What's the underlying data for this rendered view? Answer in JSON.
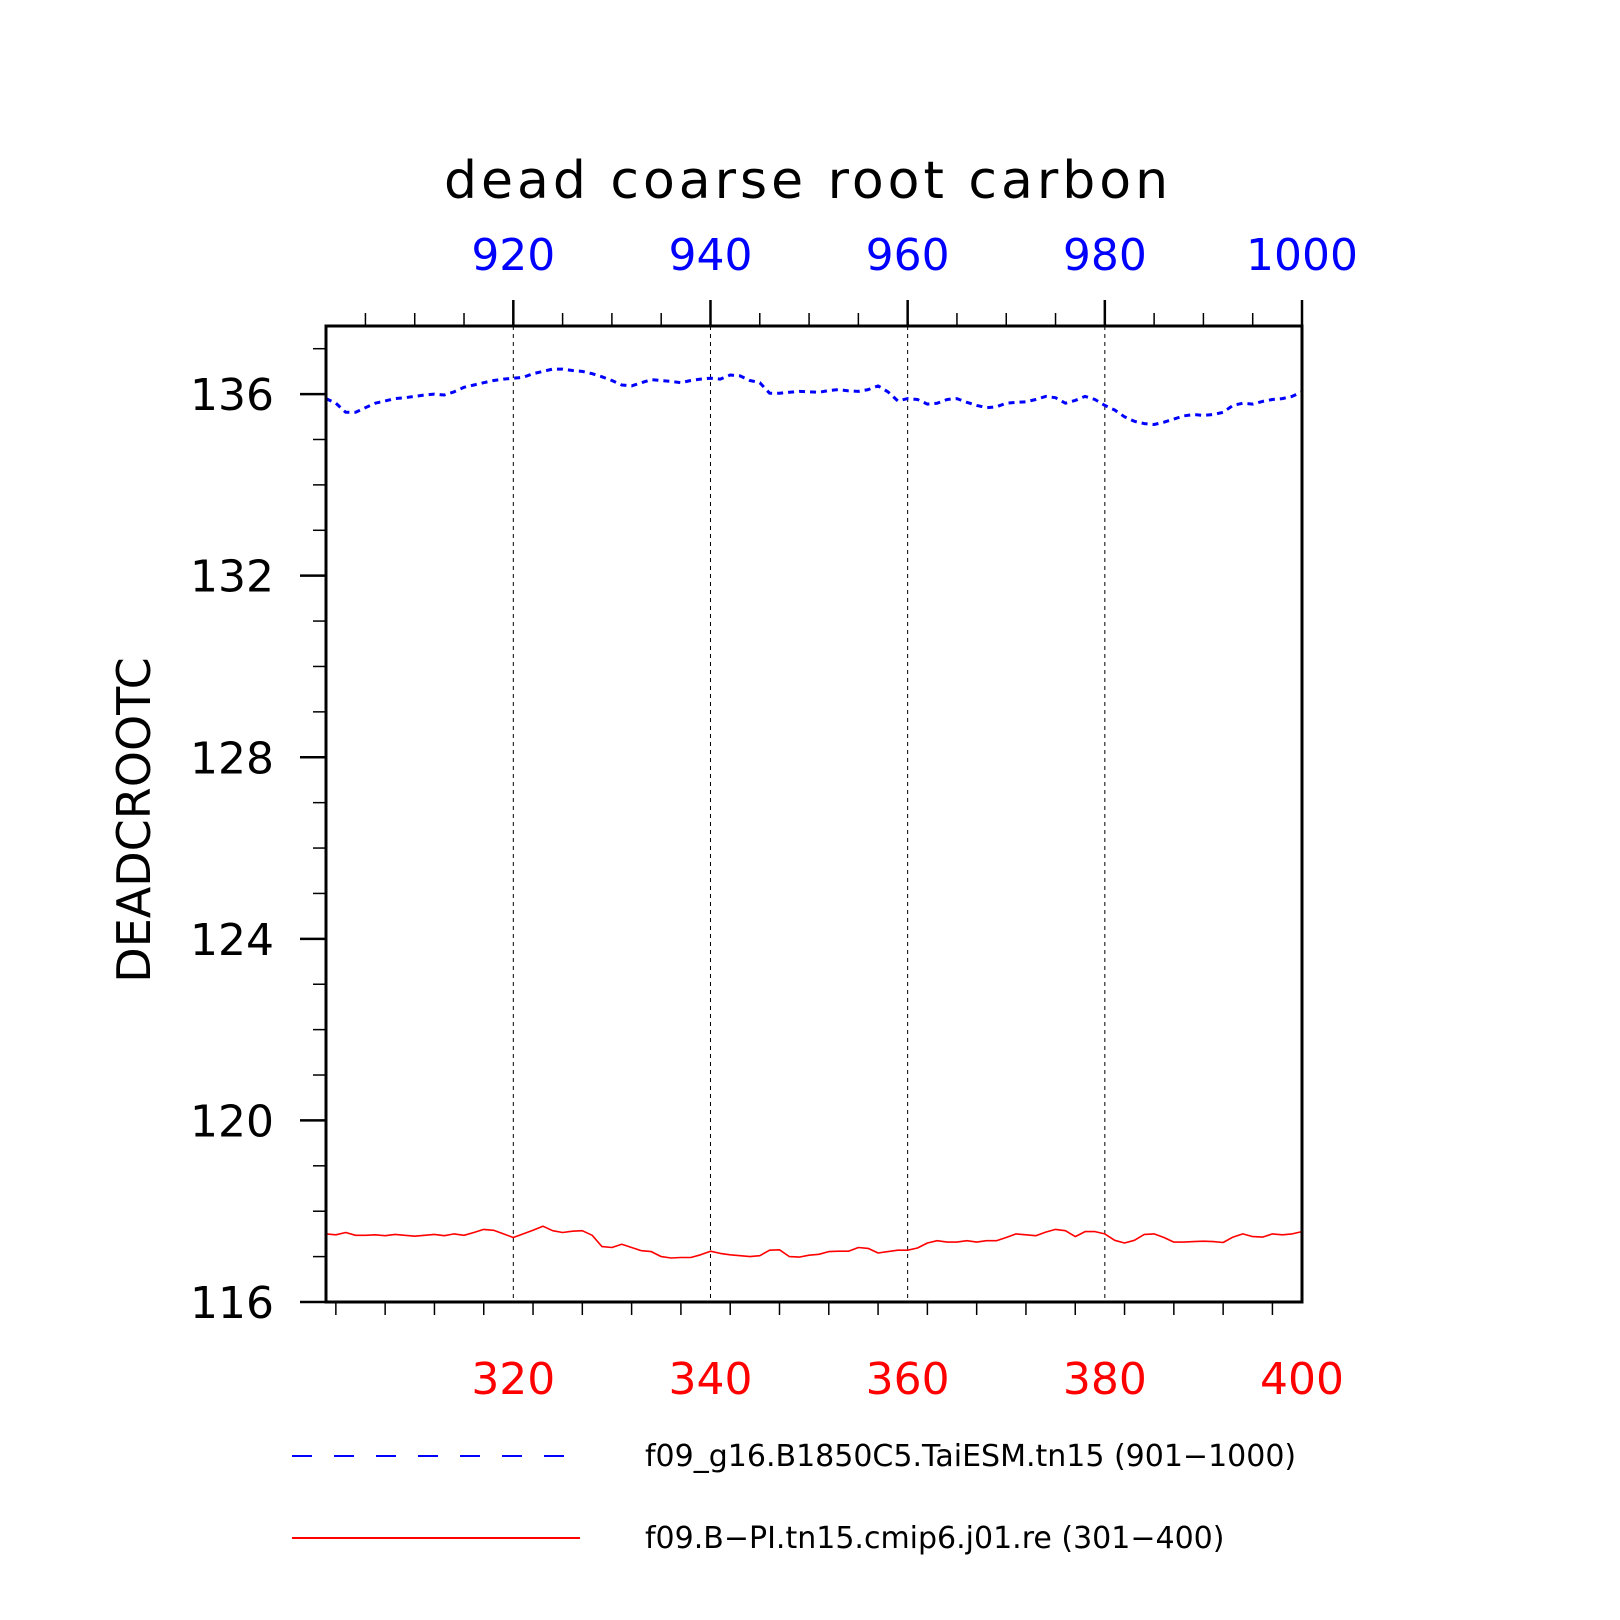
{
  "chart_data": {
    "type": "line",
    "title": "dead coarse root carbon",
    "ylabel": "DEADCROOTC",
    "ylim": [
      116,
      137.5
    ],
    "yticks": [
      116,
      120,
      124,
      128,
      132,
      136
    ],
    "ytick_labels": [
      "116",
      "120",
      "124",
      "128",
      "132",
      "136"
    ],
    "grid": "vertical dashed",
    "x_bottom": {
      "range": [
        301,
        400
      ],
      "ticks": [
        320,
        340,
        360,
        380,
        400
      ],
      "tick_labels": [
        "320",
        "340",
        "360",
        "380",
        "400"
      ],
      "color": "#ff0000"
    },
    "x_top": {
      "range": [
        901,
        1000
      ],
      "ticks": [
        920,
        940,
        960,
        980,
        1000
      ],
      "tick_labels": [
        "920",
        "940",
        "960",
        "980",
        "1000"
      ],
      "color": "#0000ff"
    },
    "series": [
      {
        "name": "f09_g16.B1850C5.TaiESM.tn15 (901−1000)",
        "axis": "top",
        "color": "#0000ff",
        "style": "dashed",
        "x_start": 901,
        "x_step": 1,
        "values": [
          135.9,
          135.8,
          135.6,
          135.6,
          135.7,
          135.8,
          135.85,
          135.9,
          135.92,
          135.95,
          135.98,
          136.0,
          135.98,
          136.05,
          136.15,
          136.2,
          136.25,
          136.3,
          136.33,
          136.35,
          136.37,
          136.45,
          136.5,
          136.55,
          136.55,
          136.52,
          136.5,
          136.45,
          136.38,
          136.3,
          136.2,
          136.18,
          136.25,
          136.32,
          136.3,
          136.28,
          136.25,
          136.3,
          136.33,
          136.35,
          136.33,
          136.42,
          136.4,
          136.3,
          136.25,
          136.02,
          136.02,
          136.04,
          136.06,
          136.05,
          136.04,
          136.08,
          136.1,
          136.07,
          136.06,
          136.1,
          136.18,
          136.05,
          135.85,
          135.9,
          135.88,
          135.78,
          135.8,
          135.88,
          135.9,
          135.82,
          135.75,
          135.7,
          135.72,
          135.8,
          135.82,
          135.83,
          135.88,
          135.95,
          135.92,
          135.8,
          135.86,
          135.95,
          135.88,
          135.75,
          135.65,
          135.5,
          135.4,
          135.35,
          135.33,
          135.38,
          135.45,
          135.52,
          135.55,
          135.53,
          135.55,
          135.6,
          135.75,
          135.8,
          135.78,
          135.84,
          135.88,
          135.9,
          135.95,
          136.05
        ]
      },
      {
        "name": "f09.B−PI.tn15.cmip6.j01.re (301−400)",
        "axis": "bottom",
        "color": "#ff0000",
        "style": "solid",
        "x_start": 301,
        "x_step": 1,
        "values": [
          117.5,
          117.48,
          117.53,
          117.47,
          117.47,
          117.48,
          117.46,
          117.49,
          117.47,
          117.45,
          117.47,
          117.49,
          117.46,
          117.5,
          117.47,
          117.53,
          117.6,
          117.58,
          117.5,
          117.42,
          117.5,
          117.58,
          117.67,
          117.57,
          117.53,
          117.56,
          117.57,
          117.47,
          117.22,
          117.2,
          117.27,
          117.2,
          117.13,
          117.11,
          117.0,
          116.97,
          116.98,
          116.98,
          117.04,
          117.12,
          117.07,
          117.04,
          117.02,
          117.0,
          117.02,
          117.14,
          117.15,
          117.0,
          116.99,
          117.03,
          117.05,
          117.11,
          117.12,
          117.12,
          117.2,
          117.18,
          117.08,
          117.11,
          117.14,
          117.14,
          117.19,
          117.3,
          117.35,
          117.32,
          117.32,
          117.35,
          117.32,
          117.35,
          117.35,
          117.42,
          117.5,
          117.48,
          117.46,
          117.54,
          117.6,
          117.57,
          117.44,
          117.55,
          117.55,
          117.5,
          117.36,
          117.3,
          117.36,
          117.49,
          117.5,
          117.42,
          117.32,
          117.32,
          117.33,
          117.34,
          117.33,
          117.31,
          117.43,
          117.5,
          117.44,
          117.43,
          117.5,
          117.48,
          117.5,
          117.55
        ]
      }
    ]
  }
}
